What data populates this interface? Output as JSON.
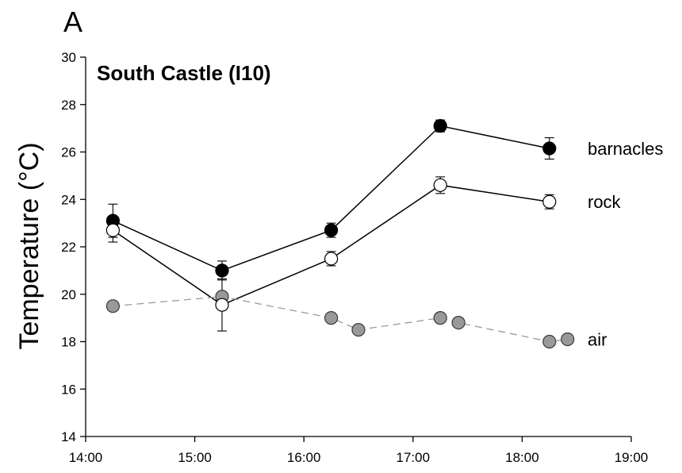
{
  "panel_label": "A",
  "chart_data": {
    "type": "line",
    "title": "South Castle (I10)",
    "xlabel": "",
    "ylabel": "Temperature (°C)",
    "xlim": [
      "14:00",
      "19:00"
    ],
    "ylim": [
      14,
      30
    ],
    "x_ticks": [
      "14:00",
      "15:00",
      "16:00",
      "17:00",
      "18:00",
      "19:00"
    ],
    "y_ticks": [
      14,
      16,
      18,
      20,
      22,
      24,
      26,
      28,
      30
    ],
    "grid": false,
    "series": [
      {
        "name": "barnacles",
        "marker": "filled-circle",
        "line": "solid",
        "color": "#000000",
        "x": [
          "14:15",
          "15:15",
          "16:15",
          "17:15",
          "18:15"
        ],
        "y": [
          23.1,
          21.0,
          22.7,
          27.1,
          26.15
        ],
        "err": [
          0.7,
          0.4,
          0.3,
          0.25,
          0.45
        ]
      },
      {
        "name": "rock",
        "marker": "open-circle",
        "line": "solid",
        "color": "#ffffff",
        "x": [
          "14:15",
          "15:15",
          "16:15",
          "17:15",
          "18:15"
        ],
        "y": [
          22.7,
          19.55,
          21.5,
          24.6,
          23.9
        ],
        "err": [
          0.5,
          1.1,
          0.3,
          0.35,
          0.3
        ]
      },
      {
        "name": "air",
        "marker": "grey-circle",
        "line": "dashed",
        "color": "#999999",
        "x": [
          "14:15",
          "15:15",
          "16:15",
          "16:30",
          "17:15",
          "17:25",
          "18:15",
          "18:25"
        ],
        "y": [
          19.5,
          19.9,
          19.0,
          18.5,
          19.0,
          18.8,
          18.0,
          18.1
        ]
      }
    ]
  }
}
